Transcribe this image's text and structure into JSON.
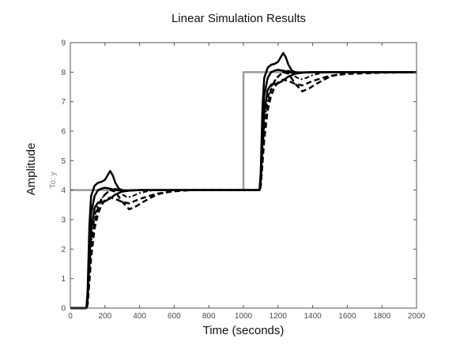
{
  "chart_data": {
    "type": "line",
    "title": "Linear Simulation Results",
    "xlabel": "Time (seconds)",
    "ylabel": "Amplitude",
    "sublabel": "To: y",
    "xlim": [
      0,
      2000
    ],
    "ylim": [
      0,
      9
    ],
    "xticks": [
      0,
      200,
      400,
      600,
      800,
      1000,
      1200,
      1400,
      1600,
      1800,
      2000
    ],
    "yticks": [
      0,
      1,
      2,
      3,
      4,
      5,
      6,
      7,
      8,
      9
    ],
    "grid": false,
    "colors": {
      "input": "#9a9a9a",
      "response": "#000000",
      "axis": "#555555"
    },
    "series": [
      {
        "style": "solid-gray",
        "x": [
          0,
          1000,
          1000,
          2000
        ],
        "y": [
          4,
          4,
          8,
          8
        ]
      },
      {
        "style": "solid",
        "x": [
          0,
          93,
          100,
          110,
          120,
          140,
          160,
          180,
          200,
          215,
          230,
          245,
          260,
          280,
          300,
          330,
          360,
          400,
          500,
          700,
          900,
          1093,
          1100,
          1110,
          1120,
          1140,
          1160,
          1180,
          1200,
          1215,
          1230,
          1245,
          1260,
          1280,
          1300,
          1330,
          1360,
          1400,
          1500,
          1700,
          2000
        ],
        "y": [
          0,
          0,
          0.6,
          2.8,
          3.8,
          4.15,
          4.25,
          4.28,
          4.35,
          4.5,
          4.65,
          4.5,
          4.25,
          4.05,
          4.0,
          3.98,
          3.99,
          4.0,
          4.0,
          4.0,
          4.0,
          4.0,
          4.6,
          6.8,
          7.8,
          8.15,
          8.25,
          8.28,
          8.35,
          8.5,
          8.65,
          8.5,
          8.25,
          8.05,
          8.0,
          7.98,
          7.99,
          8.0,
          8.0,
          8.0,
          8.0
        ]
      },
      {
        "style": "solid",
        "x": [
          0,
          93,
          100,
          110,
          120,
          140,
          160,
          180,
          200,
          230,
          260,
          300,
          350,
          400,
          500,
          700,
          900,
          1093,
          1100,
          1110,
          1120,
          1140,
          1160,
          1180,
          1200,
          1230,
          1260,
          1300,
          1350,
          1400,
          1500,
          1700,
          2000
        ],
        "y": [
          0,
          0,
          0.5,
          2.2,
          3.2,
          3.8,
          4.0,
          4.05,
          4.08,
          4.05,
          4.0,
          3.98,
          3.99,
          4.0,
          4.0,
          4.0,
          4.0,
          4.0,
          4.5,
          6.2,
          7.2,
          7.8,
          8.0,
          8.05,
          8.08,
          8.05,
          8.0,
          7.98,
          7.99,
          8.0,
          8.0,
          8.0,
          8.0
        ]
      },
      {
        "style": "solid",
        "x": [
          0,
          93,
          100,
          110,
          120,
          140,
          160,
          180,
          200,
          230,
          260,
          300,
          350,
          400,
          500,
          700,
          900,
          1093,
          1100,
          1110,
          1120,
          1140,
          1160,
          1180,
          1200,
          1230,
          1260,
          1300,
          1350,
          1400,
          1500,
          1700,
          2000
        ],
        "y": [
          0,
          0,
          0.3,
          1.6,
          2.6,
          3.4,
          3.58,
          3.6,
          3.62,
          3.72,
          3.85,
          3.95,
          3.99,
          4.0,
          4.0,
          4.0,
          4.0,
          4.0,
          4.3,
          5.6,
          6.6,
          7.4,
          7.58,
          7.6,
          7.62,
          7.72,
          7.85,
          7.95,
          7.99,
          8.0,
          8.0,
          8.0,
          8.0
        ]
      },
      {
        "style": "dashdot",
        "x": [
          0,
          95,
          100,
          110,
          120,
          140,
          160,
          180,
          200,
          230,
          260,
          280,
          300,
          330,
          360,
          400,
          450,
          500,
          600,
          700,
          900,
          1095,
          1100,
          1110,
          1120,
          1140,
          1160,
          1180,
          1200,
          1230,
          1260,
          1280,
          1300,
          1330,
          1360,
          1400,
          1450,
          1500,
          1600,
          1700,
          2000
        ],
        "y": [
          0,
          0,
          0.2,
          1.2,
          2.2,
          3.1,
          3.5,
          3.7,
          3.85,
          4.0,
          4.05,
          4.0,
          3.85,
          3.75,
          3.8,
          3.9,
          3.97,
          4.0,
          4.0,
          4.0,
          4.0,
          4.0,
          4.2,
          5.2,
          6.2,
          7.1,
          7.5,
          7.7,
          7.85,
          8.0,
          8.05,
          8.0,
          7.85,
          7.75,
          7.8,
          7.9,
          7.97,
          8.0,
          8.0,
          8.0,
          8.0
        ]
      },
      {
        "style": "dashed",
        "x": [
          0,
          95,
          100,
          110,
          120,
          140,
          160,
          180,
          200,
          230,
          260,
          300,
          340,
          380,
          420,
          500,
          600,
          700,
          900,
          1095,
          1100,
          1110,
          1120,
          1140,
          1160,
          1180,
          1200,
          1230,
          1260,
          1300,
          1340,
          1380,
          1420,
          1500,
          1600,
          1700,
          2000
        ],
        "y": [
          0,
          0,
          0.15,
          1.0,
          1.9,
          2.9,
          3.4,
          3.7,
          3.85,
          4.0,
          3.95,
          3.6,
          3.35,
          3.45,
          3.6,
          3.85,
          4.0,
          4.0,
          4.0,
          4.0,
          4.15,
          5.0,
          5.9,
          6.9,
          7.4,
          7.7,
          7.85,
          8.0,
          7.95,
          7.6,
          7.35,
          7.45,
          7.6,
          7.85,
          8.0,
          8.0,
          8.0
        ]
      },
      {
        "style": "dashed",
        "x": [
          0,
          95,
          100,
          110,
          120,
          140,
          160,
          180,
          200,
          230,
          260,
          300,
          340,
          400,
          500,
          600,
          700,
          900,
          1095,
          1100,
          1110,
          1120,
          1140,
          1160,
          1180,
          1200,
          1230,
          1260,
          1300,
          1340,
          1400,
          1500,
          1600,
          1800,
          2000
        ],
        "y": [
          0,
          0,
          0.15,
          0.9,
          1.7,
          2.7,
          3.2,
          3.5,
          3.65,
          3.75,
          3.7,
          3.6,
          3.55,
          3.7,
          3.88,
          3.96,
          4.0,
          4.0,
          4.0,
          4.15,
          4.9,
          5.7,
          6.7,
          7.2,
          7.5,
          7.65,
          7.75,
          7.7,
          7.6,
          7.55,
          7.7,
          7.88,
          7.94,
          7.98,
          8.0
        ]
      }
    ]
  }
}
